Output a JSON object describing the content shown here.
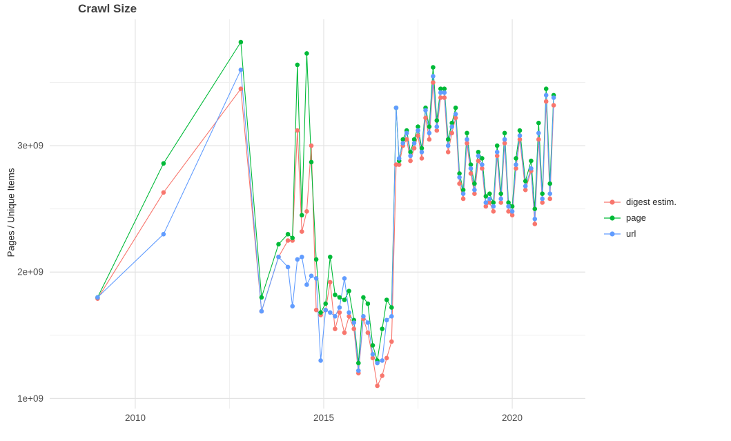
{
  "chart_data": {
    "type": "line",
    "marker": "point",
    "title": "Crawl Size",
    "xlabel": "",
    "ylabel": "Pages / Unique Items",
    "value_unit": "1e9",
    "grid": true,
    "legend_position": "right",
    "x_axis": {
      "lim": [
        2007.73,
        2021.94
      ],
      "major_ticks": [
        2010,
        2015,
        2020
      ],
      "tick_labels": [
        "2010",
        "2015",
        "2020"
      ],
      "minor_ticks": [
        2012.5,
        2017.5
      ]
    },
    "y_axis": {
      "lim": [
        0.92,
        4.0
      ],
      "major_ticks": [
        1,
        2,
        3
      ],
      "tick_labels": [
        "1e+09",
        "2e+09",
        "3e+09"
      ],
      "minor_ticks": [
        1.5,
        2.5,
        3.5
      ]
    },
    "x": [
      2009.0,
      2010.75,
      2012.8,
      2013.35,
      2013.8,
      2014.05,
      2014.17,
      2014.3,
      2014.42,
      2014.55,
      2014.67,
      2014.8,
      2014.92,
      2015.05,
      2015.17,
      2015.3,
      2015.42,
      2015.55,
      2015.67,
      2015.8,
      2015.92,
      2016.05,
      2016.17,
      2016.3,
      2016.42,
      2016.55,
      2016.67,
      2016.8,
      2016.92,
      2017.0,
      2017.1,
      2017.2,
      2017.3,
      2017.4,
      2017.5,
      2017.6,
      2017.7,
      2017.8,
      2017.9,
      2018.0,
      2018.1,
      2018.2,
      2018.3,
      2018.4,
      2018.5,
      2018.6,
      2018.7,
      2018.8,
      2018.9,
      2019.0,
      2019.1,
      2019.2,
      2019.3,
      2019.4,
      2019.5,
      2019.6,
      2019.7,
      2019.8,
      2019.9,
      2020.0,
      2020.1,
      2020.2,
      2020.35,
      2020.5,
      2020.6,
      2020.7,
      2020.8,
      2020.9,
      2021.0,
      2021.1
    ],
    "series": [
      {
        "name": "digest estim.",
        "color": "#F8766D",
        "values": [
          1.79,
          2.63,
          3.45,
          1.69,
          2.12,
          2.25,
          2.25,
          3.12,
          2.32,
          2.48,
          3.0,
          1.7,
          1.66,
          1.7,
          1.92,
          1.55,
          1.68,
          1.52,
          1.65,
          1.55,
          1.2,
          1.63,
          1.52,
          1.32,
          1.1,
          1.18,
          1.32,
          1.45,
          2.85,
          2.85,
          3.0,
          3.05,
          2.88,
          2.98,
          3.08,
          2.9,
          3.22,
          3.05,
          3.5,
          3.12,
          3.38,
          3.38,
          2.95,
          3.1,
          3.22,
          2.7,
          2.58,
          3.02,
          2.78,
          2.62,
          2.88,
          2.82,
          2.52,
          2.55,
          2.48,
          2.92,
          2.55,
          3.02,
          2.48,
          2.45,
          2.82,
          3.05,
          2.65,
          2.8,
          2.38,
          3.05,
          2.55,
          3.35,
          2.58,
          3.32
        ]
      },
      {
        "name": "page",
        "color": "#00BA38",
        "values": [
          1.8,
          2.86,
          3.82,
          1.8,
          2.22,
          2.3,
          2.27,
          3.64,
          2.45,
          3.73,
          2.87,
          2.1,
          1.68,
          1.75,
          2.12,
          1.82,
          1.8,
          1.78,
          1.85,
          1.62,
          1.28,
          1.8,
          1.75,
          1.42,
          1.3,
          1.55,
          1.78,
          1.72,
          3.3,
          2.88,
          3.05,
          3.12,
          2.95,
          3.05,
          3.15,
          2.98,
          3.3,
          3.15,
          3.62,
          3.2,
          3.45,
          3.45,
          3.05,
          3.18,
          3.3,
          2.78,
          2.65,
          3.1,
          2.85,
          2.7,
          2.95,
          2.9,
          2.6,
          2.62,
          2.55,
          3.0,
          2.62,
          3.1,
          2.55,
          2.52,
          2.9,
          3.12,
          2.72,
          2.88,
          2.5,
          3.18,
          2.62,
          3.45,
          2.7,
          3.4
        ]
      },
      {
        "name": "url",
        "color": "#619CFF",
        "values": [
          1.8,
          2.3,
          3.6,
          1.69,
          2.12,
          2.04,
          1.73,
          2.1,
          2.12,
          1.9,
          1.97,
          1.95,
          1.3,
          1.7,
          1.68,
          1.65,
          1.72,
          1.95,
          1.68,
          1.6,
          1.22,
          1.65,
          1.6,
          1.35,
          1.28,
          1.3,
          1.62,
          1.65,
          3.3,
          2.9,
          3.02,
          3.1,
          2.92,
          3.02,
          3.12,
          2.95,
          3.28,
          3.1,
          3.55,
          3.15,
          3.42,
          3.42,
          3.0,
          3.15,
          3.25,
          2.75,
          2.62,
          3.05,
          2.82,
          2.65,
          2.92,
          2.85,
          2.55,
          2.58,
          2.52,
          2.95,
          2.58,
          3.05,
          2.52,
          2.48,
          2.85,
          3.08,
          2.68,
          2.82,
          2.42,
          3.1,
          2.58,
          3.4,
          2.62,
          3.38
        ]
      }
    ]
  }
}
